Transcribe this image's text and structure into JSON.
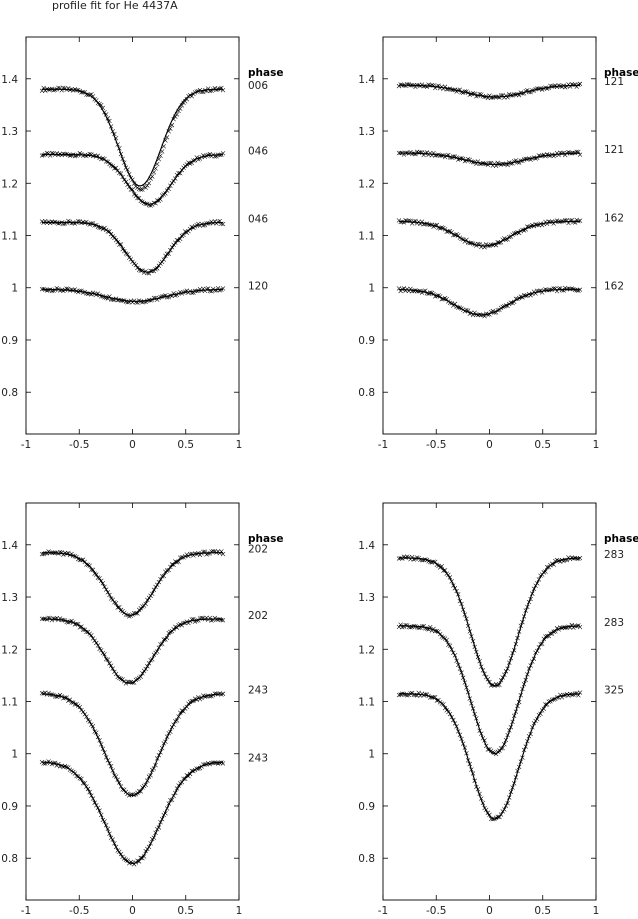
{
  "figure": {
    "title": "profile fit for He 4437A",
    "phase_header": "phase"
  },
  "chart_data": [
    {
      "type": "line",
      "panel": "top-left",
      "xlim": [
        -1,
        1
      ],
      "ylim": [
        0.72,
        1.48
      ],
      "xticks": [
        -1,
        -0.5,
        0,
        0.5,
        1
      ],
      "xtick_labels": [
        "-1",
        "-0.5",
        "0",
        "0.5",
        "1"
      ],
      "yticks": [
        0.8,
        0.9,
        1,
        1.1,
        1.2,
        1.3,
        1.4
      ],
      "ytick_labels": [
        "0.8",
        "0.9",
        "1",
        "1.1",
        "1.2",
        "1.3",
        "1.4"
      ],
      "phase_labels": [
        "006",
        "046",
        "046",
        "120"
      ],
      "profiles": [
        {
          "continuum": 1.38,
          "min_value": 1.19,
          "center": 0.08,
          "width": 0.2,
          "fit_continuum": 1.38,
          "fit_min_value": 1.195,
          "fit_center": 0.07
        },
        {
          "continuum": 1.255,
          "min_value": 1.16,
          "center": 0.16,
          "width": 0.2
        },
        {
          "continuum": 1.125,
          "min_value": 1.03,
          "center": 0.14,
          "width": 0.2
        },
        {
          "continuum": 0.997,
          "min_value": 0.974,
          "center": 0.03,
          "width": 0.28
        }
      ]
    },
    {
      "type": "line",
      "panel": "top-right",
      "xlim": [
        -1,
        1
      ],
      "ylim": [
        0.72,
        1.48
      ],
      "xticks": [
        -1,
        -0.5,
        0,
        0.5,
        1
      ],
      "xtick_labels": [
        "-1",
        "-0.5",
        "0",
        "0.5",
        "1"
      ],
      "yticks": [
        0.8,
        0.9,
        1,
        1.1,
        1.2,
        1.3,
        1.4
      ],
      "ytick_labels": [
        "0.8",
        "0.9",
        "1",
        "1.1",
        "1.2",
        "1.3",
        "1.4"
      ],
      "phase_labels": [
        "121",
        "121",
        "162",
        "162"
      ],
      "profiles": [
        {
          "continuum": 1.388,
          "min_value": 1.365,
          "center": 0.05,
          "width": 0.28
        },
        {
          "continuum": 1.258,
          "min_value": 1.236,
          "center": 0.05,
          "width": 0.28
        },
        {
          "continuum": 1.127,
          "min_value": 1.08,
          "center": -0.05,
          "width": 0.25
        },
        {
          "continuum": 0.997,
          "min_value": 0.948,
          "center": -0.08,
          "width": 0.25
        }
      ]
    },
    {
      "type": "line",
      "panel": "bottom-left",
      "xlim": [
        -1,
        1
      ],
      "ylim": [
        0.72,
        1.48
      ],
      "xticks": [
        -1,
        -0.5,
        0,
        0.5,
        1
      ],
      "xtick_labels": [
        "-1",
        "-0.5",
        "0",
        "0.5",
        "1"
      ],
      "yticks": [
        0.8,
        0.9,
        1,
        1.1,
        1.2,
        1.3,
        1.4
      ],
      "ytick_labels": [
        "0.8",
        "0.9",
        "1",
        "1.1",
        "1.2",
        "1.3",
        "1.4"
      ],
      "phase_labels": [
        "202",
        "202",
        "243",
        "243"
      ],
      "profiles": [
        {
          "continuum": 1.385,
          "min_value": 1.265,
          "center": -0.02,
          "width": 0.22
        },
        {
          "continuum": 1.258,
          "min_value": 1.135,
          "center": -0.03,
          "width": 0.22
        },
        {
          "continuum": 1.115,
          "min_value": 0.92,
          "center": 0.0,
          "width": 0.25
        },
        {
          "continuum": 0.985,
          "min_value": 0.79,
          "center": 0.0,
          "width": 0.26
        }
      ]
    },
    {
      "type": "line",
      "panel": "bottom-right",
      "xlim": [
        -1,
        1
      ],
      "ylim": [
        0.72,
        1.48
      ],
      "xticks": [
        -1,
        -0.5,
        0,
        0.5,
        1
      ],
      "xtick_labels": [
        "-1",
        "-0.5",
        "0",
        "0.5",
        "1"
      ],
      "yticks": [
        0.8,
        0.9,
        1,
        1.1,
        1.2,
        1.3,
        1.4
      ],
      "ytick_labels": [
        "0.8",
        "0.9",
        "1",
        "1.1",
        "1.2",
        "1.3",
        "1.4"
      ],
      "phase_labels": [
        "283",
        "283",
        "325"
      ],
      "profiles": [
        {
          "continuum": 1.375,
          "min_value": 1.13,
          "center": 0.05,
          "width": 0.22
        },
        {
          "continuum": 1.245,
          "min_value": 1.0,
          "center": 0.05,
          "width": 0.22
        },
        {
          "continuum": 1.115,
          "min_value": 0.875,
          "center": 0.05,
          "width": 0.22
        }
      ]
    }
  ]
}
